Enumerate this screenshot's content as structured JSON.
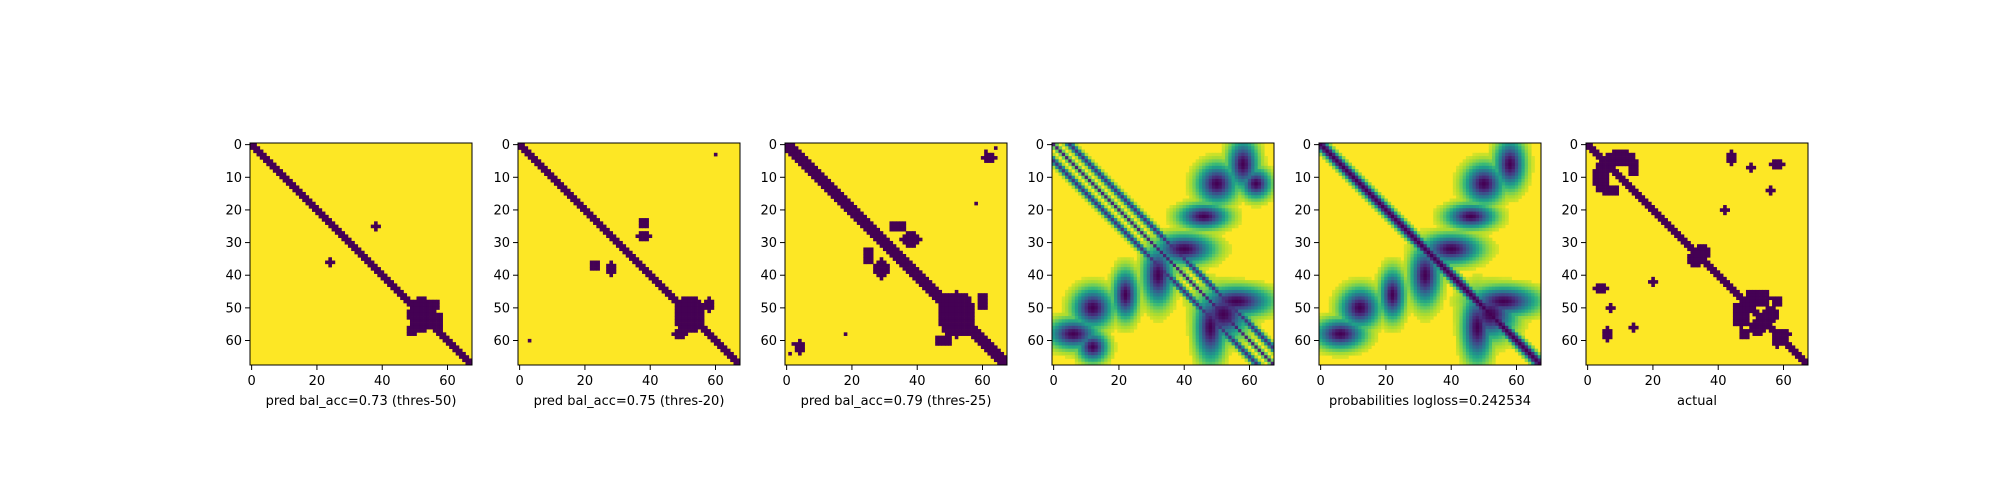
{
  "figure": {
    "background": "#ffffff"
  },
  "palette": {
    "low": "#440154",
    "high": "#fde725",
    "viridis": [
      "#440154",
      "#482878",
      "#3e4a89",
      "#31688e",
      "#26828e",
      "#1f9e89",
      "#35b779",
      "#6dcd59",
      "#b4de2c",
      "#fde725"
    ]
  },
  "chart_data": [
    {
      "type": "heatmap",
      "xlabel": "pred bal_acc=0.73 (thres-50)",
      "xticks": [
        0,
        20,
        40,
        60
      ],
      "yticks": [
        0,
        10,
        20,
        30,
        40,
        50,
        60
      ],
      "size": 68,
      "binary": true,
      "diag_halfwidth": 1.8,
      "blobs": [
        [
          36,
          24,
          1.2,
          0.9
        ],
        [
          25,
          38,
          1.0,
          0.9
        ],
        [
          52,
          52,
          4.5,
          3.5
        ],
        [
          54,
          57,
          2.5,
          1.5
        ],
        [
          49,
          56,
          1.5,
          1.2
        ],
        [
          57,
          49,
          1.2,
          1.5
        ]
      ],
      "noise": [],
      "edge_fill": false
    },
    {
      "type": "heatmap",
      "xlabel": "pred bal_acc=0.75 (thres-20)",
      "xticks": [
        0,
        20,
        40,
        60
      ],
      "yticks": [
        0,
        10,
        20,
        30,
        40,
        50,
        60
      ],
      "size": 68,
      "binary": true,
      "diag_halfwidth": 2.6,
      "blobs": [
        [
          37,
          23,
          1.6,
          1.2
        ],
        [
          24,
          38,
          1.6,
          1.2
        ],
        [
          28,
          38,
          1.2,
          1.8
        ],
        [
          38,
          28,
          1.8,
          1.2
        ],
        [
          52,
          52,
          5,
          4
        ],
        [
          49,
          58,
          1.8,
          1.3
        ],
        [
          58,
          49,
          1.3,
          1.8
        ],
        [
          3,
          60,
          0.6,
          0.6
        ],
        [
          60,
          3,
          0.6,
          0.6
        ]
      ],
      "noise": [],
      "edge_fill": false
    },
    {
      "type": "heatmap",
      "xlabel": "pred bal_acc=0.79 (thres-25)",
      "xticks": [
        0,
        20,
        40,
        60
      ],
      "yticks": [
        0,
        10,
        20,
        30,
        40,
        50,
        60
      ],
      "size": 68,
      "binary": true,
      "diag_halfwidth": 3.2,
      "blobs": [
        [
          34,
          25,
          2.2,
          1.6
        ],
        [
          25,
          34,
          1.6,
          2.2
        ],
        [
          29,
          38,
          1.8,
          2.6
        ],
        [
          38,
          29,
          2.6,
          1.8
        ],
        [
          52,
          52,
          6,
          5
        ],
        [
          48,
          60,
          2.2,
          1.5
        ],
        [
          60,
          48,
          1.5,
          2.2
        ],
        [
          4,
          62,
          1.2,
          1.8
        ],
        [
          62,
          4,
          1.8,
          1.2
        ],
        [
          58,
          18,
          0.8,
          0.7
        ],
        [
          18,
          58,
          0.7,
          0.8
        ],
        [
          3,
          61,
          1.0,
          0.6
        ],
        [
          61,
          3,
          0.6,
          1.0
        ],
        [
          1,
          64,
          0.7,
          0.7
        ],
        [
          64,
          1,
          0.7,
          0.7
        ]
      ],
      "noise": [],
      "edge_fill": false
    },
    {
      "type": "heatmap",
      "xlabel": "",
      "xticks": [
        0,
        20,
        40,
        60
      ],
      "yticks": [
        0,
        10,
        20,
        30,
        40,
        50,
        60
      ],
      "size": 68,
      "binary": false,
      "diag_halfwidth": 0,
      "offdiag": [
        5,
        1.0
      ],
      "blobs": [
        [
          32,
          40,
          3,
          6
        ],
        [
          40,
          32,
          6,
          3
        ],
        [
          48,
          56,
          3,
          7
        ],
        [
          56,
          48,
          7,
          3
        ],
        [
          52,
          52,
          5,
          5
        ],
        [
          22,
          46,
          2.5,
          5
        ],
        [
          46,
          22,
          5,
          2.5
        ],
        [
          58,
          6,
          3,
          5
        ],
        [
          6,
          58,
          5,
          3
        ],
        [
          12,
          50,
          4,
          4
        ],
        [
          50,
          12,
          4,
          4
        ],
        [
          62,
          12,
          3,
          3
        ],
        [
          12,
          62,
          3,
          3
        ]
      ],
      "noise": [],
      "edge_fill": false
    },
    {
      "type": "heatmap",
      "xlabel": "probabilities logloss=0.242534",
      "xticks": [
        0,
        20,
        40,
        60
      ],
      "yticks": [
        0,
        10,
        20,
        30,
        40,
        50,
        60
      ],
      "size": 68,
      "binary": false,
      "diag_halfwidth": 2.8,
      "blobs": [
        [
          32,
          40,
          3,
          6
        ],
        [
          40,
          32,
          6,
          3
        ],
        [
          48,
          56,
          3,
          7
        ],
        [
          56,
          48,
          7,
          3
        ],
        [
          52,
          52,
          5,
          5
        ],
        [
          22,
          46,
          2.5,
          5
        ],
        [
          46,
          22,
          5,
          2.5
        ],
        [
          58,
          6,
          3,
          5
        ],
        [
          6,
          58,
          5,
          3
        ],
        [
          12,
          50,
          4,
          4
        ],
        [
          50,
          12,
          4,
          4
        ]
      ],
      "noise": [],
      "edge_fill": false
    },
    {
      "type": "heatmap",
      "xlabel": "actual",
      "xticks": [
        0,
        20,
        40,
        60
      ],
      "yticks": [
        0,
        10,
        20,
        30,
        40,
        50,
        60
      ],
      "size": 68,
      "binary": true,
      "diag_halfwidth": 2.2,
      "blobs": [
        [
          4,
          10,
          2,
          4
        ],
        [
          10,
          4,
          4,
          2
        ],
        [
          7,
          14,
          2.2,
          1.5
        ],
        [
          14,
          7,
          1.5,
          2.2
        ],
        [
          35,
          33,
          2.5,
          2
        ],
        [
          33,
          35,
          2,
          2.5
        ],
        [
          47,
          52,
          2.5,
          3.5
        ],
        [
          52,
          47,
          3.5,
          2.5
        ],
        [
          52,
          56,
          2,
          2.5
        ],
        [
          56,
          52,
          2.5,
          2
        ],
        [
          58,
          48,
          1.5,
          1.2
        ],
        [
          48,
          58,
          1.2,
          1.5
        ],
        [
          4,
          44,
          1.8,
          1.5
        ],
        [
          44,
          4,
          1.5,
          1.8
        ],
        [
          6,
          58,
          1.4,
          1.8
        ],
        [
          58,
          6,
          1.8,
          1.4
        ],
        [
          14,
          56,
          1.2,
          1.0
        ],
        [
          56,
          14,
          1.0,
          1.2
        ],
        [
          20,
          42,
          1.0,
          1.5
        ],
        [
          42,
          20,
          1.5,
          1.0
        ],
        [
          60,
          58,
          1.8,
          1.2
        ],
        [
          58,
          60,
          1.2,
          1.8
        ],
        [
          7,
          50,
          1.0,
          1.0
        ],
        [
          50,
          7,
          1.0,
          1.0
        ]
      ],
      "noise": [],
      "edge_fill": false
    }
  ]
}
